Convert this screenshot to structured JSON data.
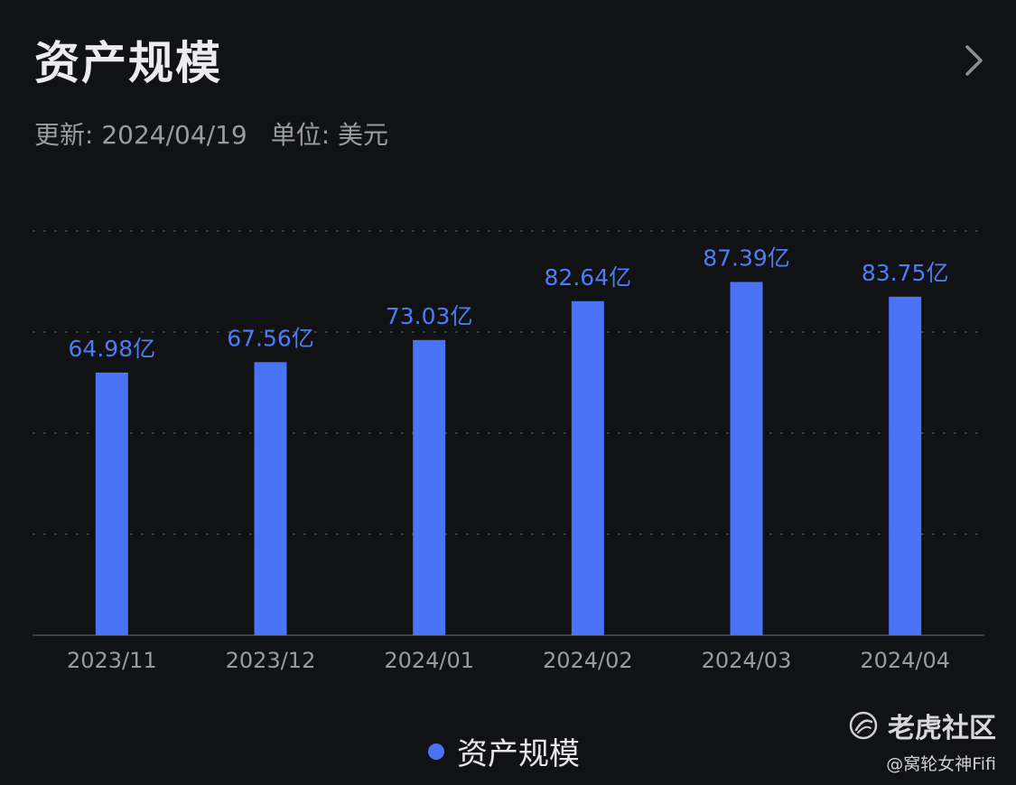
{
  "header": {
    "title": "资产规模",
    "update_text": "更新: 2024/04/19",
    "unit_text": "单位: 美元"
  },
  "icons": {
    "more": "chevron-right-icon",
    "brand": "tiger-logo-icon"
  },
  "colors": {
    "background": "#111214",
    "bar": "#4a74f5",
    "value_label": "#4f7cf6",
    "gridline": "#3a3b40",
    "axis_text": "#9a9ba0"
  },
  "chart_data": {
    "type": "bar",
    "categories": [
      "2023/11",
      "2023/12",
      "2024/01",
      "2024/02",
      "2024/03",
      "2024/04"
    ],
    "series": [
      {
        "name": "资产规模",
        "values": [
          64.98,
          67.56,
          73.03,
          82.64,
          87.39,
          83.75
        ],
        "labels": [
          "64.98亿",
          "67.56亿",
          "73.03亿",
          "82.64亿",
          "87.39亿",
          "83.75亿"
        ]
      }
    ],
    "ylim": [
      0,
      100
    ],
    "grid": true,
    "legend": "bottom-center"
  },
  "legend": {
    "label": "资产规模"
  },
  "watermark": {
    "brand": "老虎社区",
    "credit": "@窝轮女神Fifi"
  }
}
